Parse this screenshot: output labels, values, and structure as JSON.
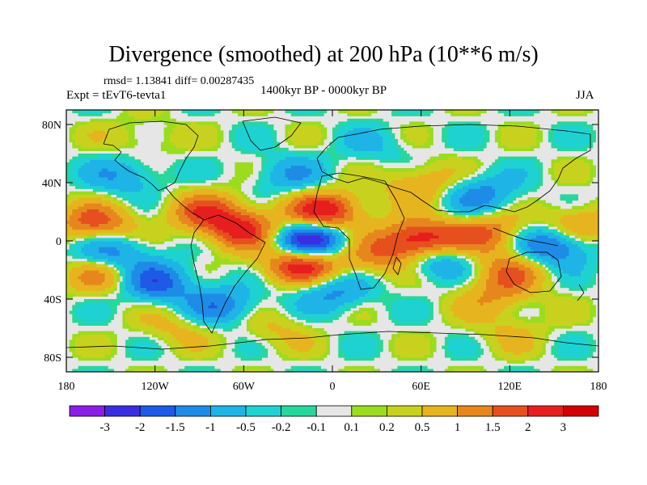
{
  "chart_data": {
    "type": "heatmap",
    "title": "Divergence (smoothed) at 200 hPa (10**6 m/s)",
    "stats_text": "rmsd= 1.13841 diff= 0.00287435",
    "experiment_text": "Expt = tEvT6-tevta1",
    "period_text": "1400kyr BP - 0000kyr BP",
    "season_text": "JJA",
    "x_ticks": [
      "180",
      "120W",
      "60W",
      "0",
      "60E",
      "120E",
      "180"
    ],
    "x_tick_values": [
      -180,
      -120,
      -60,
      0,
      60,
      120,
      180
    ],
    "y_ticks": [
      "80N",
      "40N",
      "0",
      "40S",
      "80S"
    ],
    "y_tick_values": [
      80,
      40,
      0,
      -40,
      -80
    ],
    "xlim": [
      -180,
      180
    ],
    "ylim": [
      -90,
      90
    ],
    "colorbar_labels": [
      "-3",
      "-2",
      "-1.5",
      "-1",
      "-0.5",
      "-0.2",
      "-0.1",
      "0.1",
      "0.2",
      "0.5",
      "1",
      "1.5",
      "2",
      "3"
    ],
    "colorbar_values": [
      -3,
      -2,
      -1.5,
      -1,
      -0.5,
      -0.2,
      -0.1,
      0.1,
      0.2,
      0.5,
      1,
      1.5,
      2,
      3
    ],
    "colorbar_colors": [
      "#8a1ee6",
      "#3a2ee0",
      "#1e5ae6",
      "#1e8ce6",
      "#1eb4e6",
      "#1ed2d2",
      "#28d79b",
      "#e6e6e6",
      "#9bdc1e",
      "#c8d21e",
      "#e6b41e",
      "#e6871e",
      "#e6501e",
      "#e61e1e",
      "#d20000"
    ],
    "features": [
      {
        "lon": -15,
        "lat": 0,
        "value": -3.2
      },
      {
        "lon": 150,
        "lat": -2,
        "value": -2.2
      },
      {
        "lon": -150,
        "lat": -8,
        "value": -1.6
      },
      {
        "lon": -120,
        "lat": -28,
        "value": -1.8
      },
      {
        "lon": -75,
        "lat": -45,
        "value": -1.4
      },
      {
        "lon": 60,
        "lat": 0,
        "value": 2.8
      },
      {
        "lon": 70,
        "lat": -12,
        "value": -1.6
      },
      {
        "lon": 30,
        "lat": -10,
        "value": 1.2
      },
      {
        "lon": -5,
        "lat": 20,
        "value": 2.6
      },
      {
        "lon": -20,
        "lat": -15,
        "value": 2.8
      },
      {
        "lon": -60,
        "lat": 8,
        "value": 2.0
      },
      {
        "lon": -85,
        "lat": 20,
        "value": 1.6
      },
      {
        "lon": -160,
        "lat": 12,
        "value": 1.8
      },
      {
        "lon": -155,
        "lat": -22,
        "value": 1.4
      },
      {
        "lon": 105,
        "lat": 5,
        "value": 1.6
      },
      {
        "lon": 165,
        "lat": 10,
        "value": 1.5
      },
      {
        "lon": 120,
        "lat": -20,
        "value": 1.3
      },
      {
        "lon": 100,
        "lat": 32,
        "value": -1.3
      },
      {
        "lon": 60,
        "lat": 40,
        "value": 1.1
      },
      {
        "lon": -140,
        "lat": 45,
        "value": -1.0
      },
      {
        "lon": -30,
        "lat": 45,
        "value": -0.9
      },
      {
        "lon": 0,
        "lat": -35,
        "value": -1.2
      },
      {
        "lon": 110,
        "lat": -38,
        "value": 0.9
      },
      {
        "lon": -130,
        "lat": 70,
        "value": 0.5
      },
      {
        "lon": 30,
        "lat": 65,
        "value": -0.5
      },
      {
        "lon": -40,
        "lat": -60,
        "value": 0.6
      },
      {
        "lon": 120,
        "lat": -62,
        "value": 0.5
      },
      {
        "lon": -105,
        "lat": -58,
        "value": 0.7
      }
    ]
  }
}
